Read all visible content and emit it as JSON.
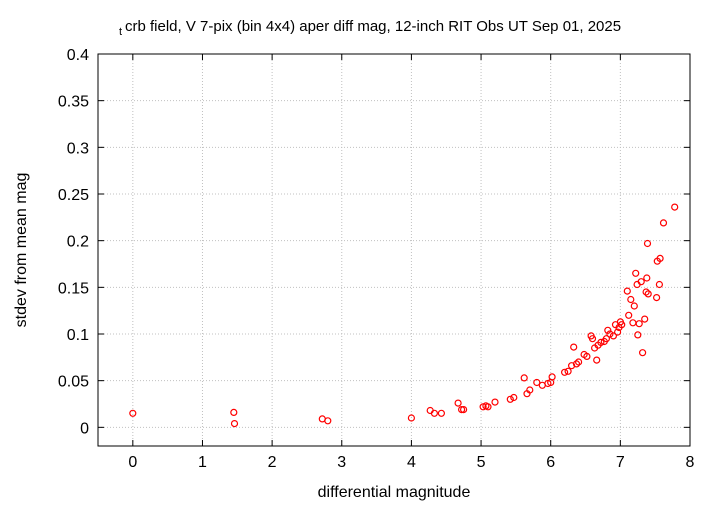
{
  "chart_data": {
    "type": "scatter",
    "title_prefix": "t",
    "title": "crb field, V 7-pix (bin 4x4) aper diff mag,  12-inch RIT Obs UT Sep 01, 2025",
    "xlabel": "differential magnitude",
    "ylabel": "stdev from mean mag",
    "xlim": [
      -0.5,
      8
    ],
    "ylim": [
      -0.02,
      0.4
    ],
    "xticks": [
      0,
      1,
      2,
      3,
      4,
      5,
      6,
      7,
      8
    ],
    "xtick_labels": [
      "0",
      "1",
      "2",
      "3",
      "4",
      "5",
      "6",
      "7",
      "8"
    ],
    "yticks": [
      0,
      0.05,
      0.1,
      0.15,
      0.2,
      0.25,
      0.3,
      0.35,
      0.4
    ],
    "ytick_labels": [
      "0",
      "0.05",
      "0.1",
      "0.15",
      "0.2",
      "0.25",
      "0.3",
      "0.35",
      "0.4"
    ],
    "grid": true,
    "marker": "open-circle",
    "colors": {
      "points": "#ff0000",
      "grid": "#c0c0c0",
      "axes": "#000000"
    },
    "points": [
      [
        0.0,
        0.015
      ],
      [
        1.45,
        0.016
      ],
      [
        1.46,
        0.004
      ],
      [
        2.72,
        0.009
      ],
      [
        2.8,
        0.007
      ],
      [
        4.0,
        0.01
      ],
      [
        4.27,
        0.018
      ],
      [
        4.33,
        0.015
      ],
      [
        4.43,
        0.015
      ],
      [
        4.67,
        0.026
      ],
      [
        4.72,
        0.019
      ],
      [
        4.75,
        0.019
      ],
      [
        5.03,
        0.022
      ],
      [
        5.07,
        0.023
      ],
      [
        5.1,
        0.022
      ],
      [
        5.2,
        0.027
      ],
      [
        5.42,
        0.03
      ],
      [
        5.47,
        0.032
      ],
      [
        5.62,
        0.053
      ],
      [
        5.66,
        0.036
      ],
      [
        5.7,
        0.04
      ],
      [
        5.8,
        0.048
      ],
      [
        5.88,
        0.045
      ],
      [
        5.96,
        0.047
      ],
      [
        6.0,
        0.048
      ],
      [
        6.02,
        0.054
      ],
      [
        6.2,
        0.059
      ],
      [
        6.25,
        0.06
      ],
      [
        6.3,
        0.066
      ],
      [
        6.33,
        0.086
      ],
      [
        6.37,
        0.068
      ],
      [
        6.4,
        0.07
      ],
      [
        6.48,
        0.078
      ],
      [
        6.52,
        0.076
      ],
      [
        6.58,
        0.098
      ],
      [
        6.6,
        0.095
      ],
      [
        6.63,
        0.085
      ],
      [
        6.66,
        0.072
      ],
      [
        6.68,
        0.088
      ],
      [
        6.72,
        0.091
      ],
      [
        6.77,
        0.092
      ],
      [
        6.8,
        0.095
      ],
      [
        6.82,
        0.104
      ],
      [
        6.85,
        0.1
      ],
      [
        6.9,
        0.098
      ],
      [
        6.93,
        0.11
      ],
      [
        6.96,
        0.102
      ],
      [
        6.98,
        0.107
      ],
      [
        7.0,
        0.113
      ],
      [
        7.02,
        0.11
      ],
      [
        7.1,
        0.146
      ],
      [
        7.12,
        0.12
      ],
      [
        7.15,
        0.137
      ],
      [
        7.18,
        0.112
      ],
      [
        7.2,
        0.13
      ],
      [
        7.22,
        0.165
      ],
      [
        7.24,
        0.153
      ],
      [
        7.25,
        0.099
      ],
      [
        7.27,
        0.111
      ],
      [
        7.3,
        0.156
      ],
      [
        7.32,
        0.08
      ],
      [
        7.35,
        0.116
      ],
      [
        7.37,
        0.145
      ],
      [
        7.38,
        0.16
      ],
      [
        7.39,
        0.197
      ],
      [
        7.4,
        0.143
      ],
      [
        7.52,
        0.139
      ],
      [
        7.53,
        0.178
      ],
      [
        7.56,
        0.153
      ],
      [
        7.57,
        0.181
      ],
      [
        7.62,
        0.219
      ],
      [
        7.78,
        0.236
      ]
    ]
  }
}
